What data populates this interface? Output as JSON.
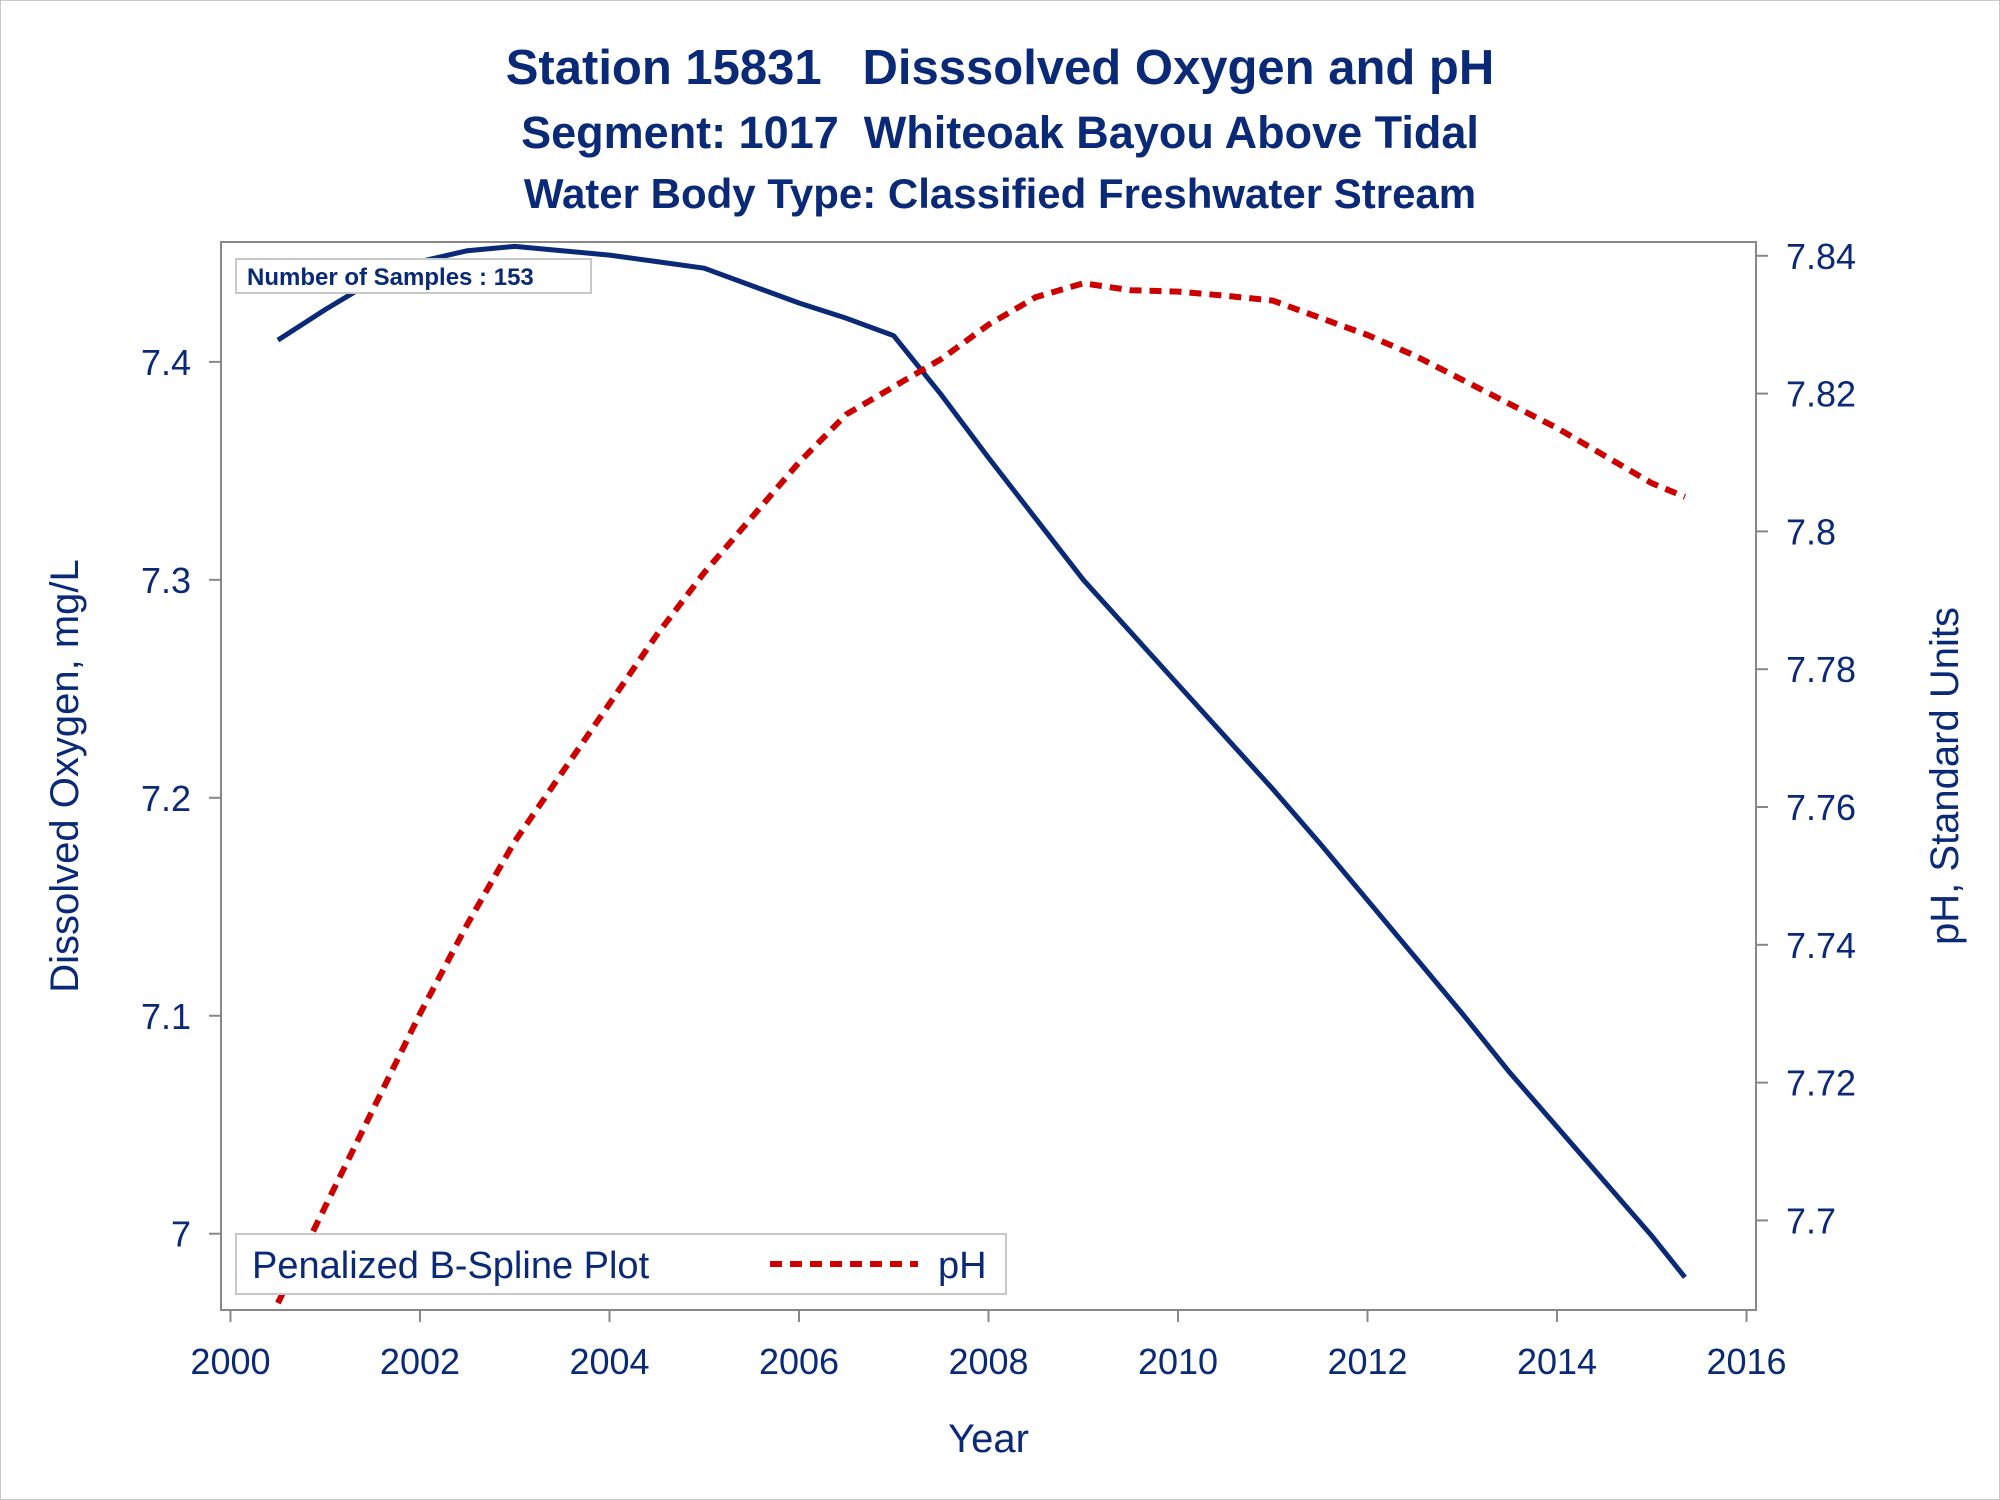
{
  "header": {
    "title": "Station 15831   Disssolved Oxygen and pH",
    "subtitle": "Segment: 1017  Whiteoak Bayou Above Tidal",
    "subtitle2": "Water Body Type: Classified Freshwater Stream"
  },
  "inset": {
    "samples_label": "Number of Samples : 153"
  },
  "legend": {
    "title": "Penalized B-Spline Plot",
    "items": [
      "pH"
    ]
  },
  "colors": {
    "do_line": "#0a2a78",
    "ph_line": "#cc0000",
    "text": "#0a2a78",
    "axis": "#888888"
  },
  "chart_data": {
    "type": "line",
    "title": "Station 15831   Disssolved Oxygen and pH",
    "xlabel": "Year",
    "ylabel_left": "Dissolved Oxygen, mg/L",
    "ylabel_right": "pH, Standard Units",
    "xlim": [
      1999.9,
      2016.1
    ],
    "ylim_left": [
      6.965,
      7.455
    ],
    "ylim_right": [
      7.687,
      7.842
    ],
    "x_ticks": [
      2000,
      2002,
      2004,
      2006,
      2008,
      2010,
      2012,
      2014,
      2016
    ],
    "y_ticks_left": [
      7,
      7.1,
      7.2,
      7.3,
      7.4
    ],
    "y_ticks_right": [
      7.7,
      7.72,
      7.74,
      7.76,
      7.78,
      7.8,
      7.82,
      7.84
    ],
    "grid": false,
    "legend_position": "bottom-left",
    "series": [
      {
        "name": "Dissolved Oxygen",
        "axis": "left",
        "style": "solid",
        "x": [
          2000.5,
          2001.0,
          2001.5,
          2002.0,
          2002.5,
          2003.0,
          2003.5,
          2004.0,
          2004.5,
          2005.0,
          2005.5,
          2006.0,
          2006.5,
          2007.0,
          2007.5,
          2008.0,
          2008.5,
          2009.0,
          2009.5,
          2010.0,
          2010.5,
          2011.0,
          2011.5,
          2012.0,
          2012.5,
          2013.0,
          2013.5,
          2014.0,
          2014.5,
          2015.0,
          2015.35
        ],
        "y": [
          7.41,
          7.424,
          7.437,
          7.446,
          7.451,
          7.453,
          7.451,
          7.449,
          7.446,
          7.443,
          7.435,
          7.427,
          7.42,
          7.412,
          7.385,
          7.356,
          7.328,
          7.3,
          7.276,
          7.252,
          7.228,
          7.204,
          7.179,
          7.153,
          7.127,
          7.101,
          7.074,
          7.049,
          7.024,
          6.999,
          6.98
        ]
      },
      {
        "name": "pH",
        "axis": "right",
        "style": "dashed",
        "x": [
          2000.5,
          2001.0,
          2001.5,
          2002.0,
          2002.5,
          2003.0,
          2003.5,
          2004.0,
          2004.5,
          2005.0,
          2005.5,
          2006.0,
          2006.5,
          2007.0,
          2007.5,
          2008.0,
          2008.5,
          2009.0,
          2009.5,
          2010.0,
          2010.5,
          2011.0,
          2011.5,
          2012.0,
          2012.5,
          2013.0,
          2013.5,
          2014.0,
          2014.5,
          2015.0,
          2015.35
        ],
        "y": [
          7.688,
          7.702,
          7.716,
          7.73,
          7.743,
          7.755,
          7.765,
          7.775,
          7.785,
          7.794,
          7.802,
          7.81,
          7.817,
          7.821,
          7.825,
          7.83,
          7.834,
          7.836,
          7.835,
          7.8348,
          7.8342,
          7.8335,
          7.831,
          7.8285,
          7.8255,
          7.822,
          7.8185,
          7.815,
          7.811,
          7.807,
          7.805
        ]
      }
    ]
  }
}
